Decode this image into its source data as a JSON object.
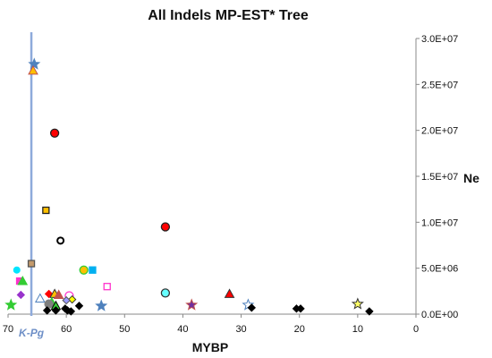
{
  "chart_data": {
    "type": "scatter",
    "title": "All Indels MP-EST* Tree",
    "xlabel": "MYBP",
    "ylabel": "Ne",
    "x_reversed": true,
    "xlim": [
      70,
      0
    ],
    "ylim": [
      0,
      30000000
    ],
    "x_ticks": [
      "70",
      "60",
      "50",
      "40",
      "30",
      "20",
      "10",
      "0"
    ],
    "y_ticks": [
      "0.0E+00",
      "5.0E+06",
      "1.0E+07",
      "1.5E+07",
      "2.0E+07",
      "2.5E+07",
      "3.0E+07"
    ],
    "y_tick_values": [
      0,
      5000000,
      10000000,
      15000000,
      20000000,
      25000000,
      30000000
    ],
    "x_tick_values": [
      70,
      60,
      50,
      40,
      30,
      20,
      10,
      0
    ],
    "y_axis_side": "right",
    "grid": false,
    "legend": "none",
    "reference_line": {
      "x": 66,
      "label": "K-Pg",
      "color": "#8eaadb"
    },
    "points": [
      {
        "x": 65.5,
        "y": 27200000,
        "shape": "star",
        "fill": "#4f81bd",
        "stroke": "#4f81bd"
      },
      {
        "x": 65.7,
        "y": 26500000,
        "shape": "triangle",
        "fill": "#ffc000",
        "stroke": "#c0504d"
      },
      {
        "x": 62.0,
        "y": 19700000,
        "shape": "circle",
        "fill": "#ff0000",
        "stroke": "#222222"
      },
      {
        "x": 63.5,
        "y": 11300000,
        "shape": "square",
        "fill": "#ffc000",
        "stroke": "#222222"
      },
      {
        "x": 61.0,
        "y": 8000000,
        "shape": "ring",
        "fill": "#ffffff",
        "stroke": "#000000"
      },
      {
        "x": 43.0,
        "y": 9500000,
        "shape": "circle",
        "fill": "#ff0000",
        "stroke": "#222222"
      },
      {
        "x": 66.0,
        "y": 5500000,
        "shape": "square",
        "fill": "#c49a6c",
        "stroke": "#555555"
      },
      {
        "x": 68.5,
        "y": 4800000,
        "shape": "dot",
        "fill": "#00e5ff",
        "stroke": "#00e5ff"
      },
      {
        "x": 68.0,
        "y": 3600000,
        "shape": "square",
        "fill": "#ff33cc",
        "stroke": "#ff33cc"
      },
      {
        "x": 67.5,
        "y": 3600000,
        "shape": "triangle",
        "fill": "#33cc33",
        "stroke": "#33cc33"
      },
      {
        "x": 57.0,
        "y": 4800000,
        "shape": "circle",
        "fill": "#ffc000",
        "stroke": "#33cc33"
      },
      {
        "x": 55.5,
        "y": 4800000,
        "shape": "square",
        "fill": "#00b0f0",
        "stroke": "#00b0f0"
      },
      {
        "x": 53.0,
        "y": 3000000,
        "shape": "square",
        "fill": "#ffffff",
        "stroke": "#ff33cc"
      },
      {
        "x": 43.0,
        "y": 2300000,
        "shape": "circle",
        "fill": "#66ffff",
        "stroke": "#333333"
      },
      {
        "x": 32.0,
        "y": 2200000,
        "shape": "triangle",
        "fill": "#ff0000",
        "stroke": "#333333"
      },
      {
        "x": 67.8,
        "y": 2100000,
        "shape": "diamond",
        "fill": "#9933cc",
        "stroke": "#9933cc"
      },
      {
        "x": 64.5,
        "y": 1700000,
        "shape": "triangle",
        "fill": "#ffffff",
        "stroke": "#4f81bd"
      },
      {
        "x": 63.0,
        "y": 2200000,
        "shape": "diamond",
        "fill": "#ff0000",
        "stroke": "#ff0000"
      },
      {
        "x": 62.0,
        "y": 2200000,
        "shape": "triangle",
        "fill": "#ffc000",
        "stroke": "#333333"
      },
      {
        "x": 61.3,
        "y": 2100000,
        "shape": "triangle",
        "fill": "#c0504d",
        "stroke": "#c0504d"
      },
      {
        "x": 59.5,
        "y": 2000000,
        "shape": "circle",
        "fill": "#ffffff",
        "stroke": "#ff33cc"
      },
      {
        "x": 59.0,
        "y": 1600000,
        "shape": "diamond",
        "fill": "#ffff00",
        "stroke": "#333333"
      },
      {
        "x": 60.0,
        "y": 1500000,
        "shape": "diamond",
        "fill": "#9999ff",
        "stroke": "#555555"
      },
      {
        "x": 62.5,
        "y": 1300000,
        "shape": "triangle",
        "fill": "#33cc33",
        "stroke": "#33cc33"
      },
      {
        "x": 63.0,
        "y": 1100000,
        "shape": "circle",
        "fill": "#7f7f7f",
        "stroke": "#7f7f7f"
      },
      {
        "x": 61.8,
        "y": 900000,
        "shape": "triangle",
        "fill": "#33cc33",
        "stroke": "#000000"
      },
      {
        "x": 69.5,
        "y": 1000000,
        "shape": "star",
        "fill": "#33cc33",
        "stroke": "#33cc33"
      },
      {
        "x": 57.8,
        "y": 900000,
        "shape": "diamond",
        "fill": "#000000",
        "stroke": "#000000"
      },
      {
        "x": 54.0,
        "y": 900000,
        "shape": "star",
        "fill": "#4f81bd",
        "stroke": "#4f81bd"
      },
      {
        "x": 63.3,
        "y": 400000,
        "shape": "diamond",
        "fill": "#000000",
        "stroke": "#000000"
      },
      {
        "x": 61.8,
        "y": 400000,
        "shape": "diamond",
        "fill": "#000000",
        "stroke": "#000000"
      },
      {
        "x": 60.2,
        "y": 600000,
        "shape": "diamond",
        "fill": "#000000",
        "stroke": "#000000"
      },
      {
        "x": 59.8,
        "y": 400000,
        "shape": "diamond",
        "fill": "#000000",
        "stroke": "#000000"
      },
      {
        "x": 59.2,
        "y": 300000,
        "shape": "diamond",
        "fill": "#000000",
        "stroke": "#000000"
      },
      {
        "x": 38.5,
        "y": 1000000,
        "shape": "star",
        "fill": "#7030a0",
        "stroke": "#c0504d"
      },
      {
        "x": 28.8,
        "y": 1000000,
        "shape": "star",
        "fill": "#ffffff",
        "stroke": "#4f81bd"
      },
      {
        "x": 28.2,
        "y": 700000,
        "shape": "diamond",
        "fill": "#000000",
        "stroke": "#000000"
      },
      {
        "x": 20.5,
        "y": 600000,
        "shape": "diamond",
        "fill": "#000000",
        "stroke": "#000000"
      },
      {
        "x": 19.8,
        "y": 600000,
        "shape": "diamond",
        "fill": "#000000",
        "stroke": "#000000"
      },
      {
        "x": 10.0,
        "y": 1100000,
        "shape": "star",
        "fill": "#ffff66",
        "stroke": "#333333"
      },
      {
        "x": 8.0,
        "y": 300000,
        "shape": "diamond",
        "fill": "#000000",
        "stroke": "#000000"
      }
    ]
  }
}
